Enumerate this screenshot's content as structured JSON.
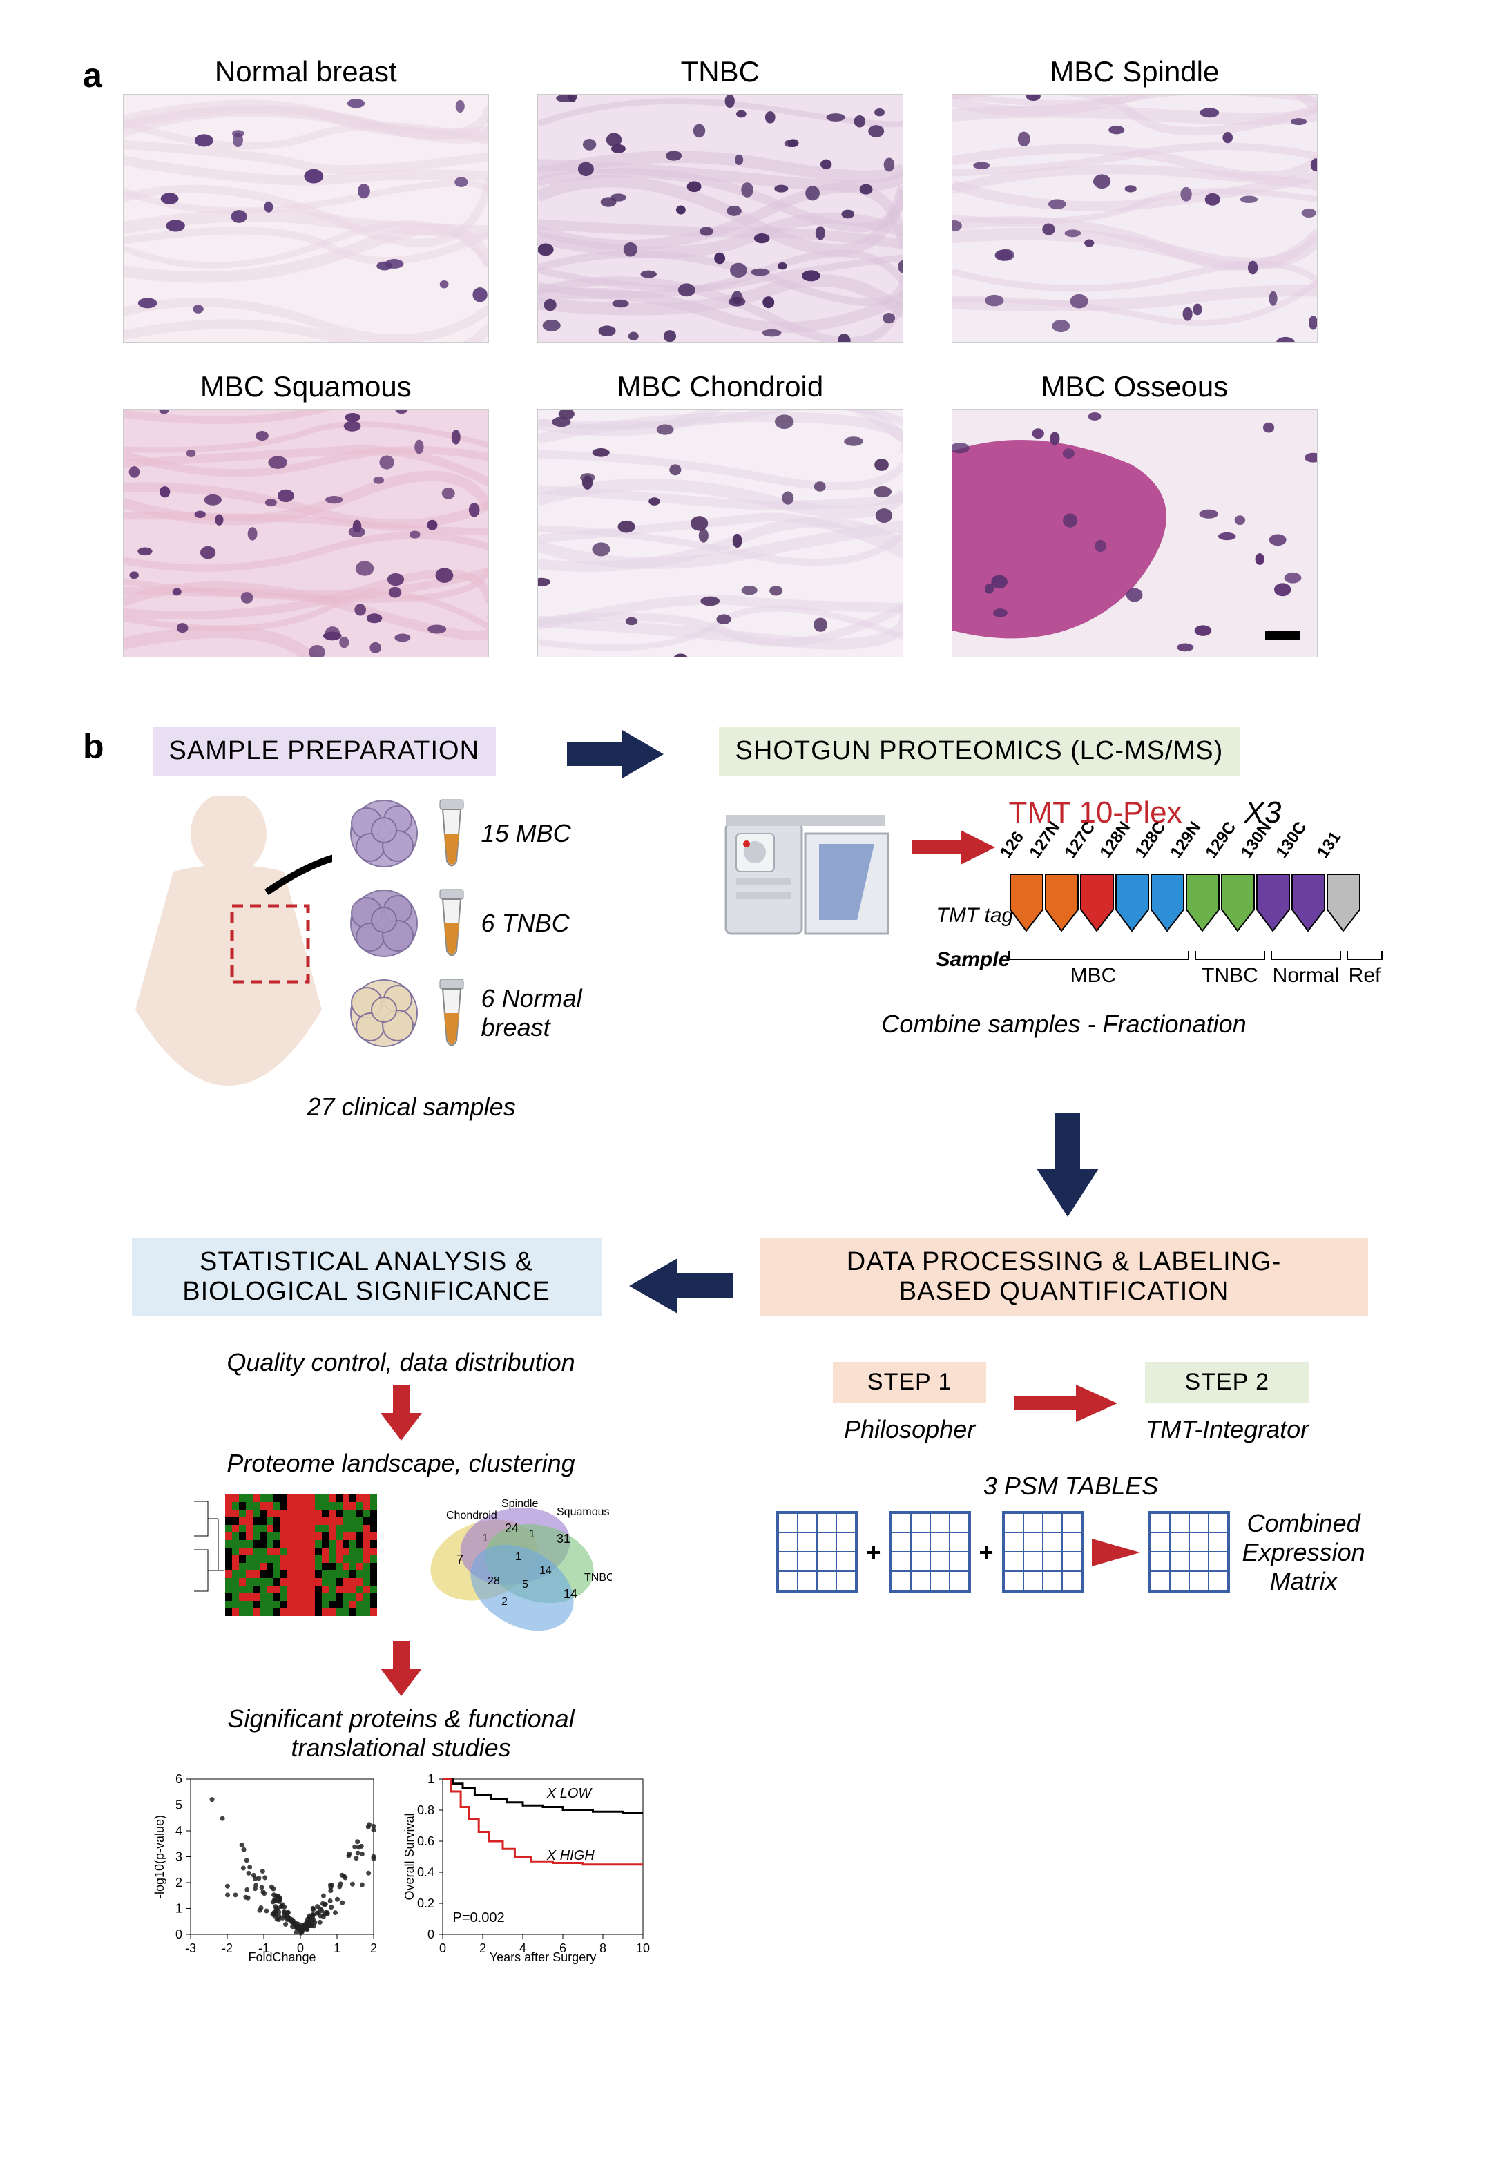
{
  "panelA": {
    "label": "a",
    "histology": [
      {
        "title": "Normal breast",
        "bg": "#f6eef3",
        "stroma": "#e9d6e4",
        "nuclei": "#5b3a78",
        "density": 18
      },
      {
        "title": "TNBC",
        "bg": "#efe2ee",
        "stroma": "#d9c2da",
        "nuclei": "#4a2e63",
        "density": 55
      },
      {
        "title": "MBC Spindle",
        "bg": "#f4ecf3",
        "stroma": "#e3cee2",
        "nuclei": "#5a3b73",
        "density": 30
      },
      {
        "title": "MBC Squamous",
        "bg": "#efd7e5",
        "stroma": "#e7b9cd",
        "nuclei": "#5d3570",
        "density": 45
      },
      {
        "title": "MBC Chondroid",
        "bg": "#f5eef4",
        "stroma": "#e4d3e6",
        "nuclei": "#523464",
        "density": 28
      },
      {
        "title": "MBC Osseous",
        "bg": "#f3e9f1",
        "stroma": "#b03f8a",
        "nuclei": "#5a3270",
        "density": 22,
        "osseous_band": true
      }
    ]
  },
  "panelB": {
    "label": "b",
    "headers": {
      "sample_prep": "SAMPLE PREPARATION",
      "shotgun": "SHOTGUN PROTEOMICS (LC-MS/MS)",
      "processing": "DATA PROCESSING & LABELING-\nBASED QUANTIFICATION",
      "stats": "STATISTICAL ANALYSIS &\nBIOLOGICAL SIGNIFICANCE"
    },
    "header_colors": {
      "sample_prep": "#e8dff2",
      "shotgun": "#e5efdc",
      "processing": "#fae0d0",
      "stats": "#e0ecf5"
    },
    "sample_prep": {
      "groups": [
        {
          "label": "15 MBC",
          "cluster_color": "#b4a0cc",
          "tube_fill": "#d98c2e"
        },
        {
          "label": "6 TNBC",
          "cluster_color": "#a996c2",
          "tube_fill": "#d98c2e"
        },
        {
          "label": "6 Normal\nbreast",
          "cluster_color": "#e6d7b8",
          "tube_fill": "#d98c2e"
        }
      ],
      "total": "27 clinical samples"
    },
    "shotgun": {
      "tmt_title": "TMT 10-Plex",
      "replicates": "X3",
      "tag_label": "TMT tag",
      "sample_label": "Sample",
      "tags": [
        {
          "id": "126",
          "color": "#e46a1f"
        },
        {
          "id": "127N",
          "color": "#e46a1f"
        },
        {
          "id": "127C",
          "color": "#d42a2a"
        },
        {
          "id": "128N",
          "color": "#2d8fd6"
        },
        {
          "id": "128C",
          "color": "#2d8fd6"
        },
        {
          "id": "129N",
          "color": "#6bb24a"
        },
        {
          "id": "129C",
          "color": "#6bb24a"
        },
        {
          "id": "130N",
          "color": "#6a3fa0"
        },
        {
          "id": "130C",
          "color": "#6a3fa0"
        },
        {
          "id": "131",
          "color": "#bcbcbc"
        }
      ],
      "groups": [
        "MBC",
        "TNBC",
        "Normal",
        "Ref"
      ],
      "subtitle": "Combine samples - Fractionation"
    },
    "processing": {
      "step1_box": "STEP 1",
      "step2_box": "STEP 2",
      "step1_lbl": "Philosopher",
      "step2_lbl": "TMT-Integrator",
      "psm_label": "3 PSM TABLES",
      "combined": "Combined\nExpression\nMatrix"
    },
    "stats": {
      "qc": "Quality control, data distribution",
      "landscape": "Proteome landscape, clustering",
      "sig": "Significant proteins & functional\ntranslational studies",
      "venn_labels": [
        "Chondroid",
        "Spindle",
        "Squamous",
        "TNBC"
      ],
      "venn_values": {
        "a": 7,
        "b": 24,
        "c": 31,
        "d": 14,
        "ab": 1,
        "ac": 2,
        "ad": 2,
        "bc": 1,
        "bd": 5,
        "cd": 14,
        "abc": 1,
        "center": 1,
        "abd": 28
      },
      "heatmap_colors": {
        "low": "#1a7a1a",
        "mid": "#000000",
        "high": "#d62323"
      },
      "volcano": {
        "xlabel": "FoldChange",
        "ylabel": "-log10(p-value)",
        "xlim": [
          -3,
          2
        ],
        "ylim": [
          0,
          6
        ],
        "point_color": "#222",
        "n_points": 180
      },
      "km": {
        "xlabel": "Years after Surgery",
        "ylabel": "Overall Survival",
        "xlim": [
          0,
          10
        ],
        "ylim": [
          0,
          1
        ],
        "pvalue": "P=0.002",
        "low_label": "X  LOW",
        "high_label": "X  HIGH",
        "low_color": "#000000",
        "high_color": "#d62323"
      }
    },
    "arrow_colors": {
      "navy": "#1b2a55",
      "red": "#c1272d"
    }
  }
}
